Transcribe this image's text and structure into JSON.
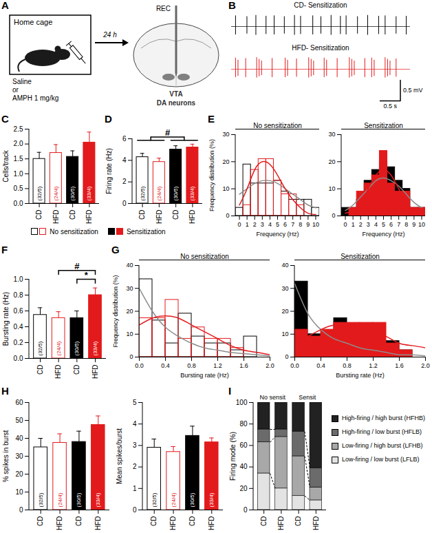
{
  "chart_data": [
    {
      "panel": "A",
      "type": "diagram",
      "texts": {
        "box": "Home cage",
        "treatment1": "Saline",
        "or": "or",
        "treatment2": "AMPH 1 mg/kg",
        "delay": "24 h",
        "electrode": "REC",
        "region": "VTA",
        "cells": "DA neurons"
      }
    },
    {
      "panel": "B",
      "type": "trace",
      "tick_labels": false,
      "xlim": [
        0,
        4.4
      ],
      "ylim": [
        -0.3,
        0.3
      ],
      "baseline": 0,
      "traces": [
        {
          "name": "CD- Sensitization",
          "color": "#000000",
          "spike_times": [
            0.1,
            0.38,
            0.6,
            0.85,
            1.05,
            1.3,
            1.55,
            1.7,
            2.0,
            2.2,
            2.45,
            2.68,
            2.82,
            3.1,
            3.35,
            3.62,
            3.78,
            4.05,
            4.3
          ],
          "peaks": [
            0.26,
            0.24,
            0.27,
            0.25,
            0.26,
            0.24,
            0.27,
            0.25,
            0.26,
            0.24,
            0.27,
            0.25,
            0.26,
            0.24,
            0.27,
            0.25,
            0.26,
            0.24,
            0.25
          ],
          "troughs": [
            -0.2,
            -0.18,
            -0.21,
            -0.19,
            -0.2,
            -0.18,
            -0.21,
            -0.19,
            -0.2,
            -0.18,
            -0.21,
            -0.19,
            -0.2,
            -0.18,
            -0.21,
            -0.19,
            -0.2,
            -0.18,
            -0.2
          ]
        },
        {
          "name": "HFD- Sensitization",
          "color": "#e31a1c",
          "spike_times": [
            0.1,
            0.16,
            0.35,
            0.62,
            0.68,
            0.74,
            1.0,
            1.32,
            1.38,
            1.6,
            1.9,
            1.96,
            2.02,
            2.28,
            2.34,
            2.6,
            2.9,
            2.96,
            3.02,
            3.28,
            3.45,
            3.51,
            3.78,
            3.84,
            3.9,
            4.05
          ],
          "peaks": [
            0.27,
            0.22,
            0.26,
            0.28,
            0.24,
            0.2,
            0.26,
            0.27,
            0.22,
            0.25,
            0.28,
            0.24,
            0.2,
            0.27,
            0.22,
            0.26,
            0.28,
            0.24,
            0.2,
            0.26,
            0.27,
            0.22,
            0.28,
            0.24,
            0.2,
            0.25
          ],
          "troughs": [
            -0.2,
            -0.17,
            -0.2,
            -0.21,
            -0.18,
            -0.15,
            -0.2,
            -0.2,
            -0.17,
            -0.19,
            -0.21,
            -0.18,
            -0.15,
            -0.2,
            -0.17,
            -0.2,
            -0.21,
            -0.18,
            -0.15,
            -0.2,
            -0.2,
            -0.17,
            -0.21,
            -0.18,
            -0.15,
            -0.19
          ]
        }
      ],
      "scale_bar": {
        "x": 0.5,
        "x_label": "0.5 s",
        "y": 0.5,
        "y_label": "0.5 mV"
      }
    },
    {
      "panel": "C",
      "type": "bar",
      "categories": [
        "CD",
        "HFD",
        "CD",
        "HFD"
      ],
      "groups": [
        "No sensitization",
        "No sensitization",
        "Sensitization",
        "Sensitization"
      ],
      "colors": [
        "#000000",
        "#e31a1c",
        "#000000",
        "#e31a1c"
      ],
      "values": [
        1.5,
        1.7,
        1.57,
        2.05
      ],
      "errors": [
        0.22,
        0.28,
        0.2,
        0.35
      ],
      "n_labels": [
        "(32/5)",
        "(24/4)",
        "(30/5)",
        "(33/4)"
      ],
      "ylabel": "Cells/track",
      "ylim": [
        0,
        2.5
      ],
      "yticks": [
        {
          "value": 0,
          "label": "0.0"
        },
        0.5,
        {
          "value": 1,
          "label": "1.0"
        },
        1.5,
        {
          "value": 2,
          "label": "2.0"
        },
        2.5
      ]
    },
    {
      "panel": "D",
      "type": "bar",
      "categories": [
        "CD",
        "HFD",
        "CD",
        "HFD"
      ],
      "groups": [
        "No sensitization",
        "No sensitization",
        "Sensitization",
        "Sensitization"
      ],
      "colors": [
        "#000000",
        "#e31a1c",
        "#000000",
        "#e31a1c"
      ],
      "values": [
        4.3,
        3.85,
        5.0,
        5.2
      ],
      "errors": [
        0.35,
        0.35,
        0.35,
        0.3
      ],
      "n_labels": [
        "(32/5)",
        "(24/4)",
        "(30/5)",
        "(33/4)"
      ],
      "ylabel": "Firing rate (Hz)",
      "ylim": [
        0,
        6
      ],
      "yticks": [
        0,
        2,
        4,
        6
      ],
      "annotations": [
        {
          "text": "#",
          "bars": [
            [
              0,
              1
            ],
            [
              2,
              3
            ]
          ]
        }
      ]
    },
    {
      "panel": "E",
      "type": "histogram",
      "ylabel": "Frequency distribution (%)",
      "xlabel": "Frequency (Hz)",
      "xlim": [
        -0.5,
        10.5
      ],
      "xticks": [
        0,
        1,
        2,
        3,
        4,
        5,
        6,
        7,
        8,
        9,
        10
      ],
      "ylim": [
        0,
        30
      ],
      "yticks": [
        0,
        10,
        20,
        30
      ],
      "bins": [
        -0.5,
        0.5,
        1.5,
        2.5,
        3.5,
        4.5,
        5.5,
        6.5,
        7.5,
        8.5,
        9.5,
        10.5
      ],
      "facets": [
        {
          "title": "No sensitization",
          "series": [
            {
              "type": "bar",
              "color": "#000000",
              "values": [
                3,
                19,
                12,
                12,
                12,
                13,
                9,
                6,
                6,
                6,
                3
              ]
            },
            {
              "type": "bar",
              "color": "#e31a1c",
              "values": [
                0,
                4,
                17,
                21,
                21,
                13,
                8,
                8,
                4,
                0,
                0
              ]
            },
            {
              "type": "line",
              "color": "#8c8c8c",
              "x": [
                0,
                1,
                2,
                3,
                4,
                5,
                6,
                7,
                8,
                9,
                10
              ],
              "values": [
                8,
                10,
                12,
                13,
                13,
                12,
                10,
                8,
                6,
                4,
                3
              ]
            },
            {
              "type": "line",
              "color": "#e31a1c",
              "x": [
                0,
                1,
                2,
                3,
                4,
                5,
                6,
                7,
                8,
                9,
                10
              ],
              "values": [
                4,
                10,
                17,
                20,
                19,
                15,
                10,
                6,
                3,
                1,
                0.5
              ]
            }
          ]
        },
        {
          "title": "Sensitization",
          "series": [
            {
              "type": "bar",
              "color": "#000000",
              "values": [
                3,
                3,
                6,
                13,
                17,
                20,
                18,
                13,
                10,
                3,
                3
              ]
            },
            {
              "type": "bar",
              "color": "#e31a1c",
              "values": [
                0,
                3,
                9,
                12,
                15,
                24,
                12,
                9,
                9,
                3,
                3
              ]
            },
            {
              "type": "line",
              "color": "#8c8c8c",
              "x": [
                0,
                1,
                2,
                3,
                4,
                5,
                6,
                7,
                8,
                9,
                10
              ],
              "values": [
                2,
                4,
                7,
                10,
                13,
                14,
                13,
                11,
                8,
                5,
                3
              ]
            },
            {
              "type": "line",
              "color": "#e31a1c",
              "x": [
                0,
                1,
                2,
                3,
                4,
                5,
                6,
                7,
                8,
                9,
                10
              ],
              "values": [
                1,
                2,
                5,
                10,
                15,
                17,
                15,
                10,
                5,
                2,
                1
              ]
            }
          ]
        }
      ]
    },
    {
      "panel": "F",
      "type": "bar",
      "categories": [
        "CD",
        "HFD",
        "CD",
        "HFD"
      ],
      "groups": [
        "No sensitization",
        "No sensitization",
        "Sensitization",
        "Sensitization"
      ],
      "colors": [
        "#000000",
        "#e31a1c",
        "#000000",
        "#e31a1c"
      ],
      "values": [
        0.55,
        0.51,
        0.51,
        0.8
      ],
      "errors": [
        0.09,
        0.08,
        0.09,
        0.09
      ],
      "n_labels": [
        "(32/5)",
        "(24/4)",
        "(30/5)",
        "(33/4)"
      ],
      "ylabel": "Bursting rate (Hz)",
      "ylim": [
        0,
        1
      ],
      "yticks": [
        {
          "value": 0,
          "label": "0.0"
        },
        0.2,
        0.4,
        0.6,
        0.8,
        {
          "value": 1,
          "label": "1.0"
        }
      ],
      "annotations": [
        {
          "text": "*",
          "bars": [
            [
              2
            ],
            [
              3
            ]
          ]
        },
        {
          "text": "#",
          "bars": [
            [
              1
            ],
            [
              3
            ]
          ]
        }
      ]
    },
    {
      "panel": "G",
      "type": "histogram",
      "ylabel": "Frequency distribution (%)",
      "xlabel": "Bursting rate (Hz)",
      "xlim": [
        0,
        2
      ],
      "xticks": [
        {
          "value": 0,
          "label": "0.0"
        },
        0.4,
        0.8,
        1.2,
        1.6,
        {
          "value": 2,
          "label": "2.0"
        }
      ],
      "ylim": [
        0,
        40
      ],
      "yticks": [
        0,
        10,
        20,
        30,
        40
      ],
      "bins": [
        0,
        0.2,
        0.4,
        0.6,
        0.8,
        1,
        1.2,
        1.4,
        1.6,
        1.8,
        2
      ],
      "facets": [
        {
          "title": "No sensitization",
          "series": [
            {
              "type": "bar",
              "color": "#000000",
              "values": [
                34,
                16,
                6,
                19,
                9,
                6,
                6,
                3,
                9,
                0
              ]
            },
            {
              "type": "bar",
              "color": "#e31a1c",
              "values": [
                17,
                17,
                25,
                8,
                13,
                8,
                8,
                4,
                0,
                0
              ]
            },
            {
              "type": "line",
              "color": "#8c8c8c",
              "x": [
                0,
                0.2,
                0.4,
                0.6,
                0.8,
                1,
                1.2,
                1.4,
                1.6,
                1.8,
                2
              ],
              "values": [
                30,
                20,
                13,
                9,
                6,
                4,
                3,
                2,
                1.5,
                1,
                0.5
              ]
            },
            {
              "type": "line",
              "color": "#e31a1c",
              "x": [
                0,
                0.2,
                0.4,
                0.6,
                0.8,
                1,
                1.2,
                1.4,
                1.6,
                1.8,
                2
              ],
              "values": [
                14,
                17,
                18,
                17,
                14,
                11,
                8,
                5,
                3,
                2,
                1
              ]
            }
          ]
        },
        {
          "title": "Sensitization",
          "series": [
            {
              "type": "bar",
              "color": "#000000",
              "values": [
                33,
                10,
                3,
                17,
                7,
                13,
                7,
                7,
                3,
                0
              ]
            },
            {
              "type": "bar",
              "color": "#e31a1c",
              "values": [
                12,
                9,
                12,
                15,
                15,
                15,
                15,
                6,
                3,
                0
              ]
            },
            {
              "type": "line",
              "color": "#8c8c8c",
              "x": [
                0,
                0.2,
                0.4,
                0.6,
                0.8,
                1,
                1.2,
                1.4,
                1.6,
                1.8,
                2
              ],
              "values": [
                32,
                19,
                12,
                8,
                6,
                4,
                3,
                2,
                1,
                1,
                0.5
              ]
            },
            {
              "type": "line",
              "color": "#e31a1c",
              "x": [
                0,
                0.2,
                0.4,
                0.6,
                0.8,
                1,
                1.2,
                1.4,
                1.6,
                1.8,
                2
              ],
              "values": [
                6,
                9,
                12,
                14,
                14,
                13,
                11,
                9,
                6,
                5,
                4
              ]
            }
          ]
        }
      ]
    },
    {
      "panel": "H",
      "type": "bar",
      "categories": [
        "CD",
        "HFD",
        "CD",
        "HFD"
      ],
      "groups": [
        "No sensitization",
        "No sensitization",
        "Sensitization",
        "Sensitization"
      ],
      "colors": [
        "#000000",
        "#e31a1c",
        "#000000",
        "#e31a1c"
      ],
      "values": [
        35,
        37.5,
        38,
        47.5
      ],
      "errors": [
        5,
        5,
        6,
        5
      ],
      "n_labels": [
        "(32/5)",
        "(24/4)",
        "(30/5)",
        "(33/4)"
      ],
      "ylabel": "% spikes in burst",
      "ylim": [
        0,
        60
      ],
      "yticks": [
        0,
        10,
        20,
        30,
        40,
        50,
        60
      ]
    },
    {
      "type": "bar",
      "categories": [
        "CD",
        "HFD",
        "CD",
        "HFD"
      ],
      "groups": [
        "No sensitization",
        "No sensitization",
        "Sensitization",
        "Sensitization"
      ],
      "colors": [
        "#000000",
        "#e31a1c",
        "#000000",
        "#e31a1c"
      ],
      "values": [
        2.9,
        2.7,
        3.45,
        3.15
      ],
      "errors": [
        0.4,
        0.25,
        0.45,
        0.2
      ],
      "n_labels": [
        "(32/5)",
        "(24/4)",
        "(30/5)",
        "(33/4)"
      ],
      "ylabel": "Mean spikes/burst",
      "ylim": [
        0,
        5
      ],
      "yticks": [
        0,
        1,
        2,
        3,
        4,
        5
      ]
    },
    {
      "panel": "I",
      "type": "bar",
      "stacked": true,
      "legend": "right",
      "categories": [
        "CD",
        "HFD",
        "CD",
        "HFD"
      ],
      "group_labels": [
        "No sensit",
        "Sensit"
      ],
      "ylabel": "Firing mode (%)",
      "ylim": [
        0,
        100
      ],
      "yticks": [
        0,
        20,
        40,
        60,
        80,
        100
      ],
      "series": [
        {
          "name": "Low-firing / low burst (LFLB)",
          "color": "#e3e3e3",
          "values": [
            34,
            20,
            13,
            9
          ]
        },
        {
          "name": "Low-firing / high burst (LFHB)",
          "color": "#a8a8a8",
          "values": [
            29,
            48,
            37,
            12
          ]
        },
        {
          "name": "High-firing / low burst (HFLB)",
          "color": "#6b6b6b",
          "values": [
            12,
            7,
            23,
            18
          ]
        },
        {
          "name": "High-firing / high burst (HFHB)",
          "color": "#222222",
          "values": [
            25,
            25,
            27,
            61
          ]
        }
      ]
    }
  ]
}
